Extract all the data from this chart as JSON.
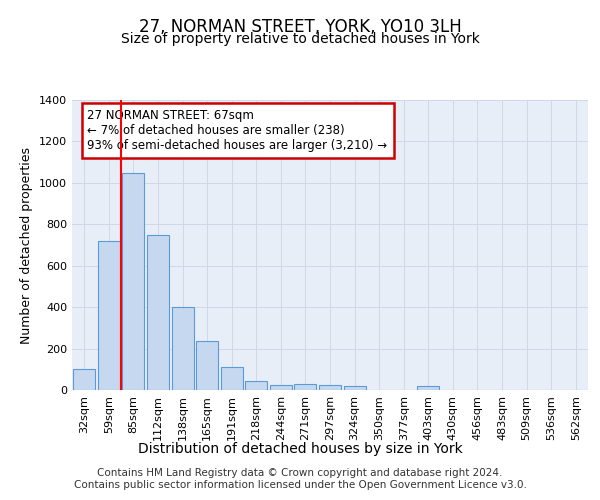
{
  "title": "27, NORMAN STREET, YORK, YO10 3LH",
  "subtitle": "Size of property relative to detached houses in York",
  "xlabel": "Distribution of detached houses by size in York",
  "ylabel": "Number of detached properties",
  "categories": [
    "32sqm",
    "59sqm",
    "85sqm",
    "112sqm",
    "138sqm",
    "165sqm",
    "191sqm",
    "218sqm",
    "244sqm",
    "271sqm",
    "297sqm",
    "324sqm",
    "350sqm",
    "377sqm",
    "403sqm",
    "430sqm",
    "456sqm",
    "483sqm",
    "509sqm",
    "536sqm",
    "562sqm"
  ],
  "values": [
    100,
    720,
    1050,
    750,
    400,
    235,
    110,
    45,
    25,
    30,
    25,
    20,
    0,
    0,
    20,
    0,
    0,
    0,
    0,
    0,
    0
  ],
  "bar_color": "#c5d8f0",
  "bar_edge_color": "#5b9bd5",
  "red_line_x": 1.5,
  "annotation_line1": "27 NORMAN STREET: 67sqm",
  "annotation_line2": "← 7% of detached houses are smaller (238)",
  "annotation_line3": "93% of semi-detached houses are larger (3,210) →",
  "annotation_box_color": "#ffffff",
  "annotation_box_edge": "#cc0000",
  "footer": "Contains HM Land Registry data © Crown copyright and database right 2024.\nContains public sector information licensed under the Open Government Licence v3.0.",
  "ylim": [
    0,
    1400
  ],
  "yticks": [
    0,
    200,
    400,
    600,
    800,
    1000,
    1200,
    1400
  ],
  "grid_color": "#d0d8e8",
  "background_color": "#e8eef8",
  "title_fontsize": 12,
  "subtitle_fontsize": 10,
  "ylabel_fontsize": 9,
  "xlabel_fontsize": 10,
  "tick_fontsize": 8,
  "footer_fontsize": 7.5,
  "ann_fontsize": 8.5
}
